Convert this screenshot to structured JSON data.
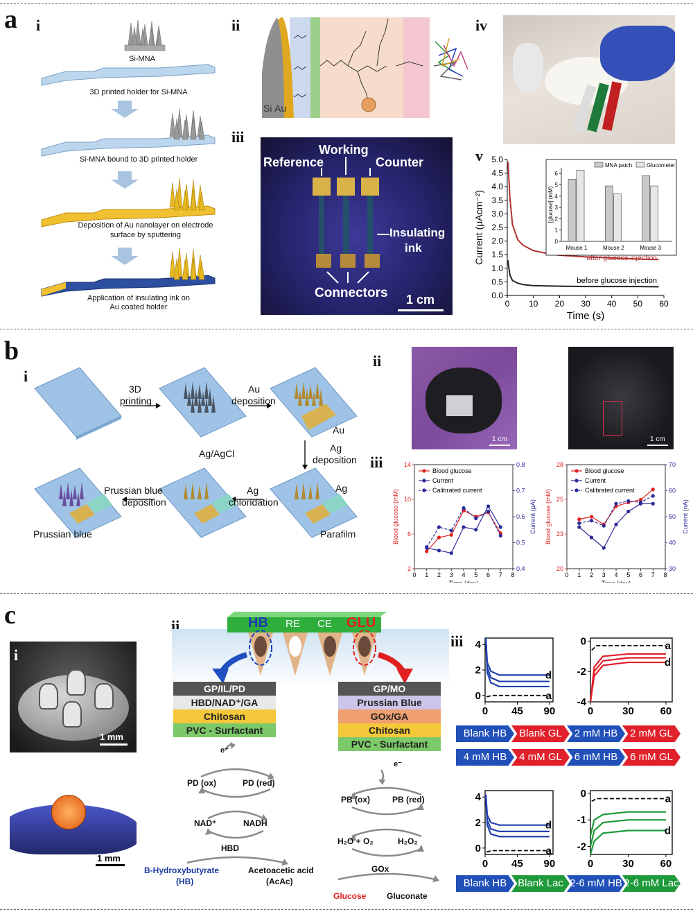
{
  "panels": {
    "a": "a",
    "b": "b",
    "c": "c",
    "a_subs": [
      "i",
      "ii",
      "iii",
      "iv",
      "v"
    ],
    "b_subs": [
      "i",
      "ii",
      "iii"
    ],
    "c_subs": [
      "i",
      "ii",
      "iii"
    ]
  },
  "a_i": {
    "si_mna": "Si-MNA",
    "step1": "3D printed holder for Si-MNA",
    "step2": "Si-MNA bound to 3D printed holder",
    "step3a": "Deposition of Au nanolayer on electrode",
    "step3b": "surface by sputtering",
    "step4a": "Application of insulating ink on",
    "step4b": "Au coated holder"
  },
  "a_ii": {
    "si": "Si",
    "au": "Au"
  },
  "a_iii": {
    "reference": "Reference",
    "working": "Working",
    "counter": "Counter",
    "insulating": "Insulating",
    "ink": "ink",
    "connectors": "Connectors",
    "scale": "1 cm"
  },
  "a_v": {
    "ylabel": "Current (μAcm⁻²)",
    "xlabel": "Time (s)",
    "after": "after glucose injection",
    "before": "before glucose injection",
    "inset": {
      "legend": [
        "MNA patch",
        "Glucometer"
      ],
      "ylabel": "[glucose] (mM)",
      "categories": [
        "Mouse 1",
        "Mouse 2",
        "Mouse 3"
      ]
    }
  },
  "b_i": {
    "printing": [
      "3D",
      "printing"
    ],
    "au_dep": [
      "Au",
      "deposition"
    ],
    "au": "Au",
    "ag_dep": [
      "Ag",
      "deposition"
    ],
    "ag": "Ag",
    "parafilm": "Parafilm",
    "ag_chlor": [
      "Ag",
      "chloridation"
    ],
    "agagcl": "Ag/AgCl",
    "pb_dep": [
      "Prussian blue",
      "deposition"
    ],
    "pb": "Prussian blue"
  },
  "b_ii": {
    "scale1": "1 cm",
    "scale2": "1 cm"
  },
  "c_i": {
    "scale1": "1 mm",
    "scale2": "1 mm"
  },
  "c_ii": {
    "top": [
      "HB",
      "RE",
      "CE",
      "GLU"
    ],
    "left_layers": [
      "GP/IL/PD",
      "HBD/NAD⁺/GA",
      "Chitosan",
      "PVC - Surfactant"
    ],
    "right_layers": [
      "GP/MO",
      "Prussian Blue",
      "GOx/GA",
      "Chitosan",
      "PVC - Surfactant"
    ],
    "electron": "e⁻",
    "pd_ox": "PD (ox)",
    "pd_red": "PD (red)",
    "nad": "NAD⁺",
    "nadh": "NADH",
    "hbd": "HBD",
    "hb1": "B-Hydroxybutyrate",
    "hb2": "(HB)",
    "acac1": "Acetoacetic acid",
    "acac2": "(AcAc)",
    "pb_ox": "PB (ox)",
    "pb_red": "PB (red)",
    "h2o": "H₂O + O₂",
    "h2o2": "H₂O₂",
    "gox": "GOx",
    "glucose": "Glucose",
    "gluconate": "Gluconate"
  },
  "c_iii": {
    "row1": [
      "Blank HB",
      "Blank GL",
      "2 mM HB",
      "2 mM GL"
    ],
    "row2": [
      "4 mM HB",
      "4 mM GL",
      "6 mM HB",
      "6 mM GL"
    ],
    "row3": [
      "Blank HB",
      "Blank Lac",
      "2-6 mM HB",
      "2-6 mM Lac"
    ]
  },
  "chart_data": [
    {
      "type": "line",
      "id": "a_v",
      "xlabel": "Time (s)",
      "ylabel": "Current (μAcm⁻²)",
      "xlim": [
        0,
        60
      ],
      "ylim": [
        0,
        5.0
      ],
      "xticks": [
        0,
        10,
        20,
        30,
        40,
        50,
        60
      ],
      "yticks": [
        0.0,
        0.5,
        1.0,
        1.5,
        2.0,
        2.5,
        3.0,
        3.5,
        4.0,
        4.5,
        5.0
      ],
      "series": [
        {
          "name": "after glucose injection",
          "color": "#b03030",
          "x": [
            0.3,
            1,
            2,
            4,
            6,
            10,
            15,
            20,
            30,
            40,
            50,
            58
          ],
          "y": [
            4.9,
            3.6,
            2.6,
            2.05,
            1.85,
            1.65,
            1.55,
            1.48,
            1.42,
            1.38,
            1.34,
            1.32
          ]
        },
        {
          "name": "before glucose injection",
          "color": "#222222",
          "x": [
            0.2,
            1,
            2,
            4,
            6,
            10,
            20,
            30,
            40,
            50,
            58
          ],
          "y": [
            1.3,
            0.75,
            0.55,
            0.45,
            0.4,
            0.36,
            0.34,
            0.33,
            0.33,
            0.33,
            0.32
          ]
        }
      ]
    },
    {
      "type": "bar",
      "id": "a_v_inset",
      "categories": [
        "Mouse 1",
        "Mouse 2",
        "Mouse 3"
      ],
      "ylim": [
        0,
        6.5
      ],
      "ylabel": "[glucose] (mM)",
      "series": [
        {
          "name": "MNA patch",
          "values": [
            5.5,
            4.9,
            5.8
          ]
        },
        {
          "name": "Glucometer",
          "values": [
            6.3,
            4.2,
            4.9
          ]
        }
      ]
    },
    {
      "type": "line",
      "id": "b_iii_left",
      "xlabel": "Time (day)",
      "ylabel": "Blood glucose (mM)",
      "y2label": "Current (μA)",
      "xlim": [
        0,
        8
      ],
      "ylim": [
        2,
        14
      ],
      "y2lim": [
        0.4,
        0.8
      ],
      "series": [
        {
          "name": "Blood glucose",
          "color": "#e02020",
          "x": [
            1,
            2,
            3,
            4,
            5,
            6,
            7
          ],
          "y": [
            4.0,
            5.6,
            5.9,
            8.7,
            8.0,
            8.5,
            6.1
          ]
        },
        {
          "name": "Current",
          "color": "#2a2a9a",
          "axis": "y2",
          "x": [
            1,
            2,
            3,
            4,
            5,
            6,
            7
          ],
          "y": [
            0.48,
            0.47,
            0.46,
            0.56,
            0.55,
            0.64,
            0.56
          ]
        },
        {
          "name": "Calibrated current",
          "color": "#2a2a9a",
          "dashed": true,
          "x": [
            1,
            2,
            3,
            4,
            5,
            6,
            7
          ],
          "y": [
            4.5,
            6.8,
            6.4,
            9.0,
            7.8,
            8.6,
            5.8
          ]
        }
      ]
    },
    {
      "type": "line",
      "id": "b_iii_right",
      "xlabel": "Time (day)",
      "ylabel": "Blood glucose (mM)",
      "y2label": "Current (nA)",
      "xlim": [
        0,
        8
      ],
      "ylim": [
        20,
        28
      ],
      "y2lim": [
        30,
        70
      ],
      "series": [
        {
          "name": "Blood glucose",
          "color": "#e02020",
          "x": [
            1,
            2,
            3,
            4,
            5,
            6,
            7
          ],
          "y": [
            23.8,
            24.0,
            23.4,
            24.8,
            25.1,
            25.3,
            26.1
          ]
        },
        {
          "name": "Current",
          "color": "#2a2a9a",
          "axis": "y2",
          "x": [
            1,
            2,
            3,
            4,
            5,
            6,
            7
          ],
          "y": [
            46,
            42,
            38,
            47,
            52,
            55,
            55
          ]
        },
        {
          "name": "Calibrated current",
          "color": "#2a2a9a",
          "dashed": true,
          "x": [
            1,
            2,
            3,
            4,
            5,
            6,
            7
          ],
          "y": [
            23.5,
            23.7,
            23.3,
            25.0,
            25.2,
            25.1,
            25.6
          ]
        }
      ]
    },
    {
      "type": "line",
      "id": "c_iii_1",
      "xticks": [
        0,
        45,
        90
      ],
      "yticks": [
        0,
        2,
        4
      ],
      "xlim": [
        0,
        95
      ],
      "ylim": [
        -0.5,
        4.5
      ],
      "series": [
        {
          "name": "a",
          "dashed": true,
          "color": "#000",
          "x": [
            2,
            10,
            90
          ],
          "y": [
            -0.1,
            0,
            0
          ]
        },
        {
          "name": "",
          "color": "#1f3fb0",
          "x": [
            1,
            3,
            8,
            20,
            90
          ],
          "y": [
            4.5,
            1.8,
            1.0,
            0.7,
            0.7
          ]
        },
        {
          "name": "",
          "color": "#1f3fb0",
          "x": [
            1,
            3,
            8,
            20,
            90
          ],
          "y": [
            4.5,
            2.2,
            1.4,
            1.1,
            1.1
          ]
        },
        {
          "name": "d",
          "color": "#1f3fb0",
          "x": [
            1,
            3,
            8,
            20,
            90
          ],
          "y": [
            4.5,
            2.6,
            1.9,
            1.6,
            1.6
          ]
        }
      ]
    },
    {
      "type": "line",
      "id": "c_iii_2",
      "xticks": [
        0,
        30,
        60
      ],
      "yticks": [
        0,
        -2,
        -4
      ],
      "xlim": [
        0,
        65
      ],
      "ylim": [
        -4,
        0.2
      ],
      "series": [
        {
          "name": "a",
          "dashed": true,
          "color": "#000",
          "x": [
            1,
            5,
            60
          ],
          "y": [
            -0.6,
            -0.3,
            -0.3
          ]
        },
        {
          "name": "",
          "color": "#e0202a",
          "x": [
            0,
            3,
            10,
            30,
            60
          ],
          "y": [
            -4,
            -1.7,
            -1.0,
            -0.85,
            -0.85
          ]
        },
        {
          "name": "",
          "color": "#e0202a",
          "x": [
            0,
            3,
            10,
            30,
            60
          ],
          "y": [
            -4,
            -2.0,
            -1.3,
            -1.1,
            -1.1
          ]
        },
        {
          "name": "d",
          "color": "#e0202a",
          "x": [
            0,
            3,
            10,
            30,
            60
          ],
          "y": [
            -4,
            -2.3,
            -1.6,
            -1.4,
            -1.4
          ]
        }
      ]
    },
    {
      "type": "line",
      "id": "c_iii_3",
      "xticks": [
        0,
        45,
        90
      ],
      "yticks": [
        0,
        2,
        4
      ],
      "xlim": [
        0,
        95
      ],
      "ylim": [
        -0.5,
        4.5
      ],
      "series": [
        {
          "name": "a",
          "dashed": true,
          "color": "#000",
          "x": [
            2,
            10,
            90
          ],
          "y": [
            -0.3,
            -0.2,
            -0.2
          ]
        },
        {
          "name": "",
          "color": "#1f3fb0",
          "x": [
            1,
            3,
            8,
            20,
            90
          ],
          "y": [
            4.2,
            1.8,
            1.1,
            0.9,
            0.9
          ]
        },
        {
          "name": "",
          "color": "#1f3fb0",
          "x": [
            1,
            3,
            8,
            20,
            90
          ],
          "y": [
            4.2,
            2.2,
            1.5,
            1.3,
            1.3
          ]
        },
        {
          "name": "d",
          "color": "#1f3fb0",
          "x": [
            1,
            3,
            8,
            20,
            90
          ],
          "y": [
            4.2,
            2.6,
            2.0,
            1.8,
            1.8
          ]
        }
      ]
    },
    {
      "type": "line",
      "id": "c_iii_4",
      "xticks": [
        0,
        30,
        60
      ],
      "yticks": [
        0,
        -1,
        -2
      ],
      "xlim": [
        0,
        65
      ],
      "ylim": [
        -2.3,
        0.1
      ],
      "series": [
        {
          "name": "a",
          "dashed": true,
          "color": "#000",
          "x": [
            1,
            5,
            60
          ],
          "y": [
            -0.3,
            -0.2,
            -0.2
          ]
        },
        {
          "name": "",
          "color": "#1e9a3a",
          "x": [
            0,
            3,
            10,
            30,
            60
          ],
          "y": [
            -1.6,
            -1.0,
            -0.8,
            -0.7,
            -0.7
          ]
        },
        {
          "name": "",
          "color": "#1e9a3a",
          "x": [
            0,
            3,
            10,
            30,
            60
          ],
          "y": [
            -2.0,
            -1.4,
            -1.1,
            -1.0,
            -1.0
          ]
        },
        {
          "name": "d",
          "color": "#1e9a3a",
          "x": [
            0,
            3,
            10,
            30,
            60
          ],
          "y": [
            -2.3,
            -1.8,
            -1.5,
            -1.4,
            -1.4
          ]
        }
      ]
    }
  ]
}
